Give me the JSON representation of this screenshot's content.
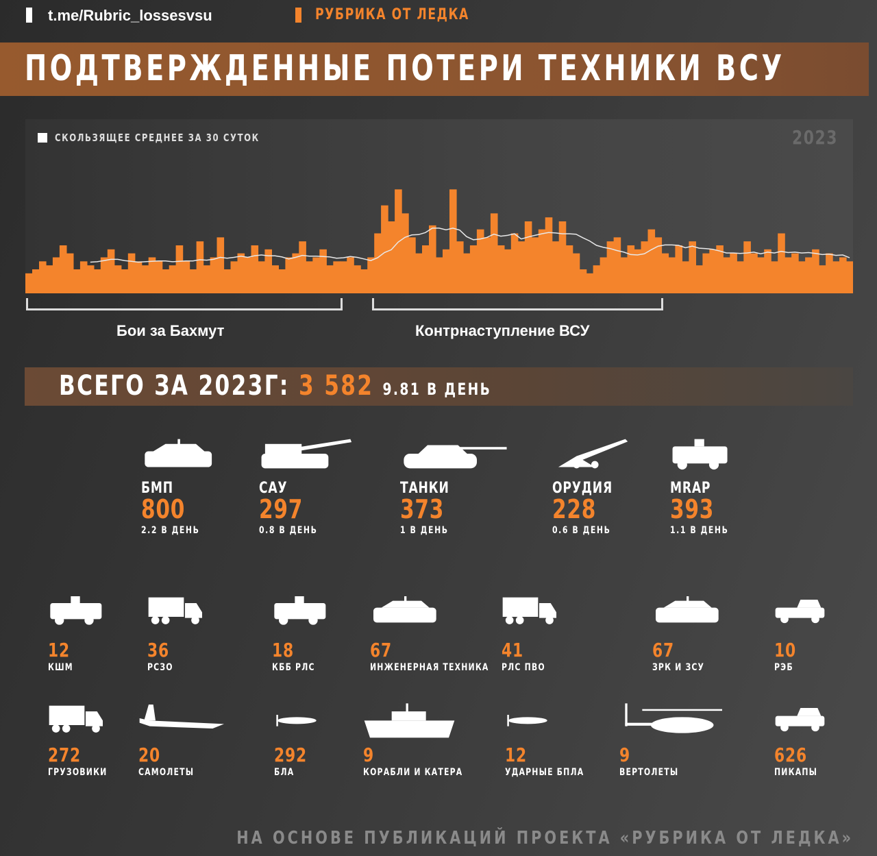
{
  "header": {
    "channel": "t.me/Rubric_lossesvsu",
    "rubric": "РУБРИКА ОТ ЛЕДКА"
  },
  "title": "ПОДТВЕРЖДЕННЫЕ ПОТЕРИ ТЕХНИКИ ВСУ",
  "colors": {
    "accent": "#f4842c",
    "band": "#8f5630",
    "avg_line": "#e8e8e8"
  },
  "chart_data": {
    "type": "bar",
    "title": "",
    "legend": [
      "СКОЛЬЗЯЩЕЕ СРЕДНЕЕ ЗА 30 СУТОК"
    ],
    "legend_placement": "top-left",
    "year_label": "2023",
    "xlabel": "",
    "ylabel": "",
    "ylim": [
      0,
      30
    ],
    "grid": false,
    "values": [
      5,
      6,
      8,
      7,
      9,
      12,
      10,
      6,
      8,
      7,
      6,
      9,
      11,
      7,
      6,
      10,
      8,
      7,
      9,
      8,
      6,
      7,
      12,
      8,
      6,
      13,
      7,
      9,
      14,
      6,
      8,
      10,
      9,
      12,
      8,
      11,
      7,
      6,
      9,
      10,
      13,
      8,
      9,
      11,
      7,
      8,
      8,
      9,
      7,
      6,
      9,
      15,
      22,
      18,
      26,
      20,
      14,
      10,
      12,
      17,
      9,
      11,
      26,
      13,
      10,
      12,
      16,
      14,
      20,
      12,
      11,
      15,
      13,
      18,
      14,
      16,
      19,
      13,
      18,
      12,
      10,
      6,
      5,
      7,
      9,
      13,
      14,
      9,
      12,
      11,
      13,
      16,
      14,
      10,
      9,
      12,
      8,
      13,
      7,
      10,
      11,
      12,
      9,
      10,
      8,
      13,
      10,
      9,
      11,
      8,
      15,
      9,
      10,
      8,
      9,
      11,
      7,
      10,
      8,
      9,
      8
    ],
    "moving_average_window": 10,
    "annotations": [
      {
        "label": "Бои за Бахмут",
        "from_index": 0,
        "to_index": 46
      },
      {
        "label": "Контрнаступление ВСУ",
        "from_index": 50,
        "to_index": 92
      }
    ]
  },
  "total": {
    "label": "ВСЕГО ЗА 2023Г:",
    "value": "3 582",
    "per_day": "9.81 В ДЕНЬ"
  },
  "main_items": [
    {
      "icon": "ifv",
      "label": "БМП",
      "value": "800",
      "per_day": "2.2 В ДЕНЬ"
    },
    {
      "icon": "spg",
      "label": "САУ",
      "value": "297",
      "per_day": "0.8 В ДЕНЬ"
    },
    {
      "icon": "tank",
      "label": "ТАНКИ",
      "value": "373",
      "per_day": "1 В ДЕНЬ"
    },
    {
      "icon": "howitzer",
      "label": "ОРУДИЯ",
      "value": "228",
      "per_day": "0.6 В ДЕНЬ"
    },
    {
      "icon": "mrap",
      "label": "MRAP",
      "value": "393",
      "per_day": "1.1 В ДЕНЬ"
    }
  ],
  "row2": [
    {
      "icon": "command-vehicle",
      "value": "12",
      "label": "КШМ"
    },
    {
      "icon": "mlrs",
      "value": "36",
      "label": "РСЗО"
    },
    {
      "icon": "radar-vehicle",
      "value": "18",
      "label": "КББ РЛС"
    },
    {
      "icon": "engineering",
      "value": "67",
      "label": "ИНЖЕНЕРНАЯ ТЕХНИКА"
    },
    {
      "icon": "air-defense-radar",
      "value": "41",
      "label": "РЛС ПВО"
    },
    {
      "icon": "sam",
      "value": "67",
      "label": "ЗРК И ЗСУ"
    },
    {
      "icon": "ew",
      "value": "10",
      "label": "РЭБ"
    }
  ],
  "row3": [
    {
      "icon": "truck",
      "value": "272",
      "label": "ГРУЗОВИКИ"
    },
    {
      "icon": "aircraft",
      "value": "20",
      "label": "САМОЛЕТЫ"
    },
    {
      "icon": "uav",
      "value": "292",
      "label": "БЛА"
    },
    {
      "icon": "ship",
      "value": "9",
      "label": "КОРАБЛИ И КАТЕРА"
    },
    {
      "icon": "strike-uav",
      "value": "12",
      "label": "УДАРНЫЕ БПЛА"
    },
    {
      "icon": "helicopter",
      "value": "9",
      "label": "ВЕРТОЛЕТЫ"
    },
    {
      "icon": "pickup",
      "value": "626",
      "label": "ПИКАПЫ"
    }
  ],
  "footer": "НА ОСНОВЕ ПУБЛИКАЦИЙ ПРОЕКТА «РУБРИКА ОТ ЛЕДКА»"
}
